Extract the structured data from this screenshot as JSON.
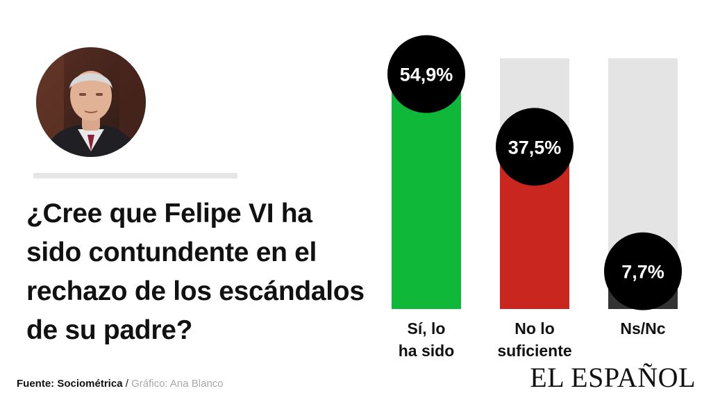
{
  "question": "¿Cree que Felipe VI ha sido contundente en el rechazo de los escándalos de su padre?",
  "source": {
    "label": "Fuente: Sociométrica",
    "separator": " / ",
    "credit": "Gráfico: Ana Blanco"
  },
  "logo": "EL ESPAÑOL",
  "photo": {
    "icon": "portrait-photo"
  },
  "colors": {
    "track": "#e4e4e4",
    "badge": "#000000",
    "bar_si": "#10b83a",
    "bar_no": "#c8261e",
    "bar_nsnc": "#333333"
  },
  "chart_data": {
    "type": "bar",
    "categories": [
      [
        "Sí, lo",
        "ha sido"
      ],
      [
        "No lo",
        "suficiente"
      ],
      [
        "Ns/Nc"
      ]
    ],
    "values": [
      54.9,
      37.5,
      7.7
    ],
    "value_labels": [
      "54,9%",
      "37,5%",
      "7,7%"
    ],
    "ylim": [
      0,
      60
    ],
    "grid": false,
    "legend": "none"
  }
}
